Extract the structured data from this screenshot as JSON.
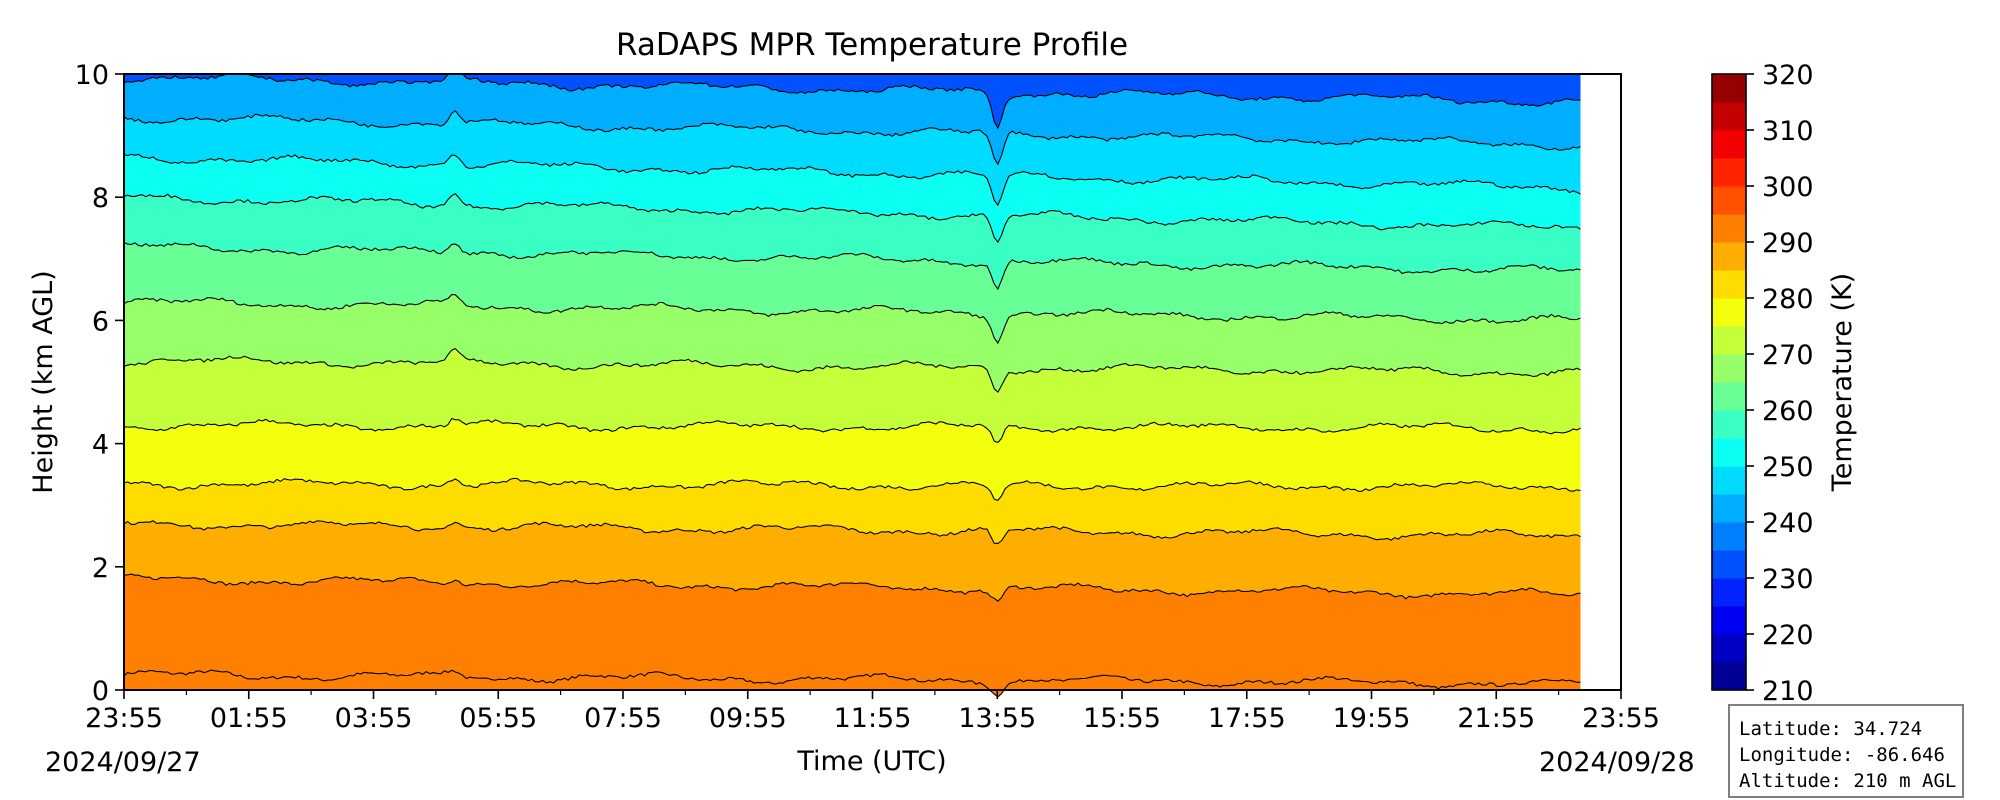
{
  "chart_data": {
    "type": "heatmap",
    "subtype": "filled-contour time-height",
    "title": "RaDAPS MPR Temperature Profile",
    "xlabel": "Time (UTC)",
    "ylabel": "Height (km AGL)",
    "x_ticks": [
      "23:55",
      "01:55",
      "03:55",
      "05:55",
      "07:55",
      "09:55",
      "11:55",
      "13:55",
      "15:55",
      "17:55",
      "19:55",
      "21:55",
      "23:55"
    ],
    "x_tick_hours": [
      0,
      2,
      4,
      6,
      8,
      10,
      12,
      14,
      16,
      18,
      20,
      22,
      24
    ],
    "x_start_date": "2024/09/27",
    "x_end_date": "2024/09/28",
    "xlim_hours": [
      0,
      24
    ],
    "data_end_hour": 23.35,
    "y_ticks": [
      0,
      2,
      4,
      6,
      8,
      10
    ],
    "ylim": [
      0,
      10
    ],
    "colorbar": {
      "label": "Temperature (K)",
      "ticks": [
        320,
        310,
        300,
        290,
        280,
        270,
        260,
        250,
        240,
        230,
        220,
        210
      ],
      "vmin": 210,
      "vmax": 320,
      "step": 5,
      "colormap": "jet"
    },
    "contour_levels_k": [
      295,
      290,
      285,
      280,
      275,
      270,
      265,
      260,
      255,
      250,
      245,
      240,
      235,
      230
    ],
    "contour_heights_start_km": [
      0.25,
      1.8,
      2.7,
      3.35,
      4.3,
      5.35,
      6.3,
      7.2,
      8.0,
      8.65,
      9.3,
      9.95,
      null,
      null
    ],
    "contour_heights_end_km": [
      0.1,
      1.55,
      2.5,
      3.3,
      4.25,
      5.15,
      6.0,
      6.8,
      7.5,
      8.15,
      8.85,
      9.55,
      null,
      null
    ],
    "disturbance_hours": [
      5.3,
      14.0
    ],
    "surface_temperature_k": 293
  },
  "station_info": {
    "latitude": "Latitude: 34.724",
    "longitude": "Longitude: -86.646",
    "altitude": "Altitude: 210 m AGL"
  }
}
